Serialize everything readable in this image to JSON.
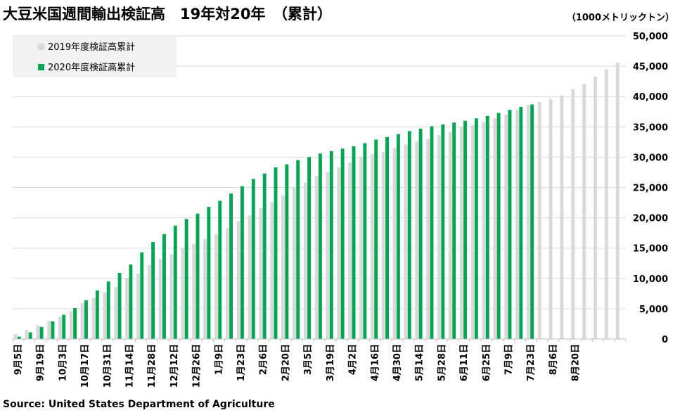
{
  "title": "大豆米国週間輸出検証高　19年対20年　（累計）",
  "unit_label": "（1000メトリックトン）",
  "source": "Source: United States Department of Agriculture",
  "colors": {
    "series_2019": "#d9d9d9",
    "series_2020": "#00a651",
    "grid": "#d9d9d9",
    "legend_bg": "#f2f2f2"
  },
  "chart_data": {
    "type": "bar",
    "title": "大豆米国週間輸出検証高　19年対20年　（累計）",
    "ylabel": "（1000メトリックトン）",
    "ylim": [
      0,
      50000
    ],
    "yticks": [
      "0",
      "5,000",
      "10,000",
      "15,000",
      "20,000",
      "25,000",
      "30,000",
      "35,000",
      "40,000",
      "45,000",
      "50,000"
    ],
    "tick_labels": [
      "9月5日",
      "9月19日",
      "10月3日",
      "10月17日",
      "10月31日",
      "11月14日",
      "11月28日",
      "12月12日",
      "12月26日",
      "1月9日",
      "1月23日",
      "2月6日",
      "2月20日",
      "3月5日",
      "3月19日",
      "4月2日",
      "4月16日",
      "4月30日",
      "5月14日",
      "5月28日",
      "6月11日",
      "6月25日",
      "7月9日",
      "7月23日",
      "8月6日",
      "8月20日"
    ],
    "legend": [
      "2019年度検証高累計",
      "2020年度検証高累計"
    ],
    "series": [
      {
        "name": "2019年度検証高累計",
        "values": [
          800,
          1500,
          2300,
          3000,
          3700,
          4600,
          5900,
          6800,
          7700,
          8600,
          10000,
          10800,
          12200,
          13200,
          14000,
          15000,
          15700,
          16500,
          17300,
          18300,
          19400,
          20400,
          21600,
          22600,
          23700,
          25000,
          25800,
          26900,
          27500,
          28300,
          29100,
          30000,
          30500,
          30900,
          31500,
          32100,
          32600,
          33000,
          33600,
          34200,
          35000,
          35300,
          35800,
          36400,
          37000,
          37800,
          38600,
          39100,
          39600,
          40200,
          41200,
          42100,
          43300,
          44500,
          45600
        ]
      },
      {
        "name": "2020年度検証高累計",
        "values": [
          400,
          1100,
          2000,
          2900,
          4000,
          5100,
          6400,
          8000,
          9500,
          10900,
          12300,
          14300,
          16000,
          17300,
          18700,
          19800,
          20700,
          21800,
          22800,
          24000,
          25200,
          26400,
          27300,
          28300,
          28800,
          29500,
          30000,
          30600,
          31000,
          31400,
          31800,
          32300,
          32900,
          33300,
          33800,
          34300,
          34700,
          35100,
          35400,
          35700,
          36000,
          36400,
          36800,
          37300,
          37800,
          38300,
          38700
        ]
      }
    ]
  }
}
